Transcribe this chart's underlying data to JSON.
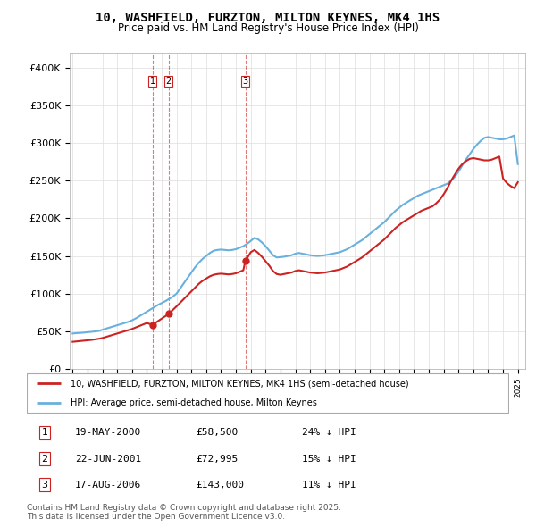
{
  "title": "10, WASHFIELD, FURZTON, MILTON KEYNES, MK4 1HS",
  "subtitle": "Price paid vs. HM Land Registry's House Price Index (HPI)",
  "ylabel_ticks": [
    0,
    50000,
    100000,
    150000,
    200000,
    250000,
    300000,
    350000,
    400000
  ],
  "ylabel_labels": [
    "£0",
    "£50K",
    "£100K",
    "£150K",
    "£200K",
    "£250K",
    "£300K",
    "£350K",
    "£400K"
  ],
  "ylim": [
    0,
    420000
  ],
  "xlim_start": 1994.8,
  "xlim_end": 2025.5,
  "hpi_color": "#6ab0de",
  "price_color": "#cc2222",
  "sale_dates": [
    2000.38,
    2001.47,
    2006.63
  ],
  "sale_prices": [
    58500,
    72995,
    143000
  ],
  "sale_labels": [
    "1",
    "2",
    "3"
  ],
  "legend_line1": "10, WASHFIELD, FURZTON, MILTON KEYNES, MK4 1HS (semi-detached house)",
  "legend_line2": "HPI: Average price, semi-detached house, Milton Keynes",
  "table_data": [
    [
      "1",
      "19-MAY-2000",
      "£58,500",
      "24% ↓ HPI"
    ],
    [
      "2",
      "22-JUN-2001",
      "£72,995",
      "15% ↓ HPI"
    ],
    [
      "3",
      "17-AUG-2006",
      "£143,000",
      "11% ↓ HPI"
    ]
  ],
  "footnote1": "Contains HM Land Registry data © Crown copyright and database right 2025.",
  "footnote2": "This data is licensed under the Open Government Licence v3.0.",
  "hpi_data_x": [
    1995.0,
    1995.25,
    1995.5,
    1995.75,
    1996.0,
    1996.25,
    1996.5,
    1996.75,
    1997.0,
    1997.25,
    1997.5,
    1997.75,
    1998.0,
    1998.25,
    1998.5,
    1998.75,
    1999.0,
    1999.25,
    1999.5,
    1999.75,
    2000.0,
    2000.25,
    2000.5,
    2000.75,
    2001.0,
    2001.25,
    2001.5,
    2001.75,
    2002.0,
    2002.25,
    2002.5,
    2002.75,
    2003.0,
    2003.25,
    2003.5,
    2003.75,
    2004.0,
    2004.25,
    2004.5,
    2004.75,
    2005.0,
    2005.25,
    2005.5,
    2005.75,
    2006.0,
    2006.25,
    2006.5,
    2006.75,
    2007.0,
    2007.25,
    2007.5,
    2007.75,
    2008.0,
    2008.25,
    2008.5,
    2008.75,
    2009.0,
    2009.25,
    2009.5,
    2009.75,
    2010.0,
    2010.25,
    2010.5,
    2010.75,
    2011.0,
    2011.25,
    2011.5,
    2011.75,
    2012.0,
    2012.25,
    2012.5,
    2012.75,
    2013.0,
    2013.25,
    2013.5,
    2013.75,
    2014.0,
    2014.25,
    2014.5,
    2014.75,
    2015.0,
    2015.25,
    2015.5,
    2015.75,
    2016.0,
    2016.25,
    2016.5,
    2016.75,
    2017.0,
    2017.25,
    2017.5,
    2017.75,
    2018.0,
    2018.25,
    2018.5,
    2018.75,
    2019.0,
    2019.25,
    2019.5,
    2019.75,
    2020.0,
    2020.25,
    2020.5,
    2020.75,
    2021.0,
    2021.25,
    2021.5,
    2021.75,
    2022.0,
    2022.25,
    2022.5,
    2022.75,
    2023.0,
    2023.25,
    2023.5,
    2023.75,
    2024.0,
    2024.25,
    2024.5,
    2024.75,
    2025.0
  ],
  "hpi_data_y": [
    47000,
    47500,
    47800,
    48200,
    48800,
    49200,
    49800,
    50500,
    52000,
    53500,
    55000,
    56500,
    58000,
    59500,
    61000,
    62500,
    64500,
    67000,
    70000,
    73000,
    76000,
    79000,
    82000,
    85000,
    87500,
    90000,
    93000,
    96000,
    100000,
    107000,
    114000,
    121000,
    128000,
    135000,
    141000,
    146000,
    150000,
    154000,
    157000,
    158000,
    158500,
    158000,
    157500,
    158000,
    159000,
    161000,
    163000,
    166000,
    170000,
    174000,
    172000,
    168000,
    163000,
    157000,
    151000,
    148000,
    148500,
    149000,
    150000,
    151000,
    153000,
    154000,
    153000,
    152000,
    151000,
    150500,
    150000,
    150500,
    151000,
    152000,
    153000,
    154000,
    155000,
    157000,
    159000,
    162000,
    165000,
    168000,
    171000,
    175000,
    179000,
    183000,
    187000,
    191000,
    195000,
    200000,
    205000,
    210000,
    214000,
    218000,
    221000,
    224000,
    227000,
    230000,
    232000,
    234000,
    236000,
    238000,
    240000,
    242000,
    244000,
    246000,
    250000,
    255000,
    262000,
    270000,
    278000,
    285000,
    292000,
    298000,
    303000,
    307000,
    308000,
    307000,
    306000,
    305000,
    305000,
    306000,
    308000,
    310000,
    272000
  ],
  "price_data_x": [
    1995.0,
    1995.25,
    1995.5,
    1995.75,
    1996.0,
    1996.25,
    1996.5,
    1996.75,
    1997.0,
    1997.25,
    1997.5,
    1997.75,
    1998.0,
    1998.25,
    1998.5,
    1998.75,
    1999.0,
    1999.25,
    1999.5,
    1999.75,
    2000.0,
    2000.38,
    2001.47,
    2002.0,
    2002.25,
    2002.5,
    2002.75,
    2003.0,
    2003.25,
    2003.5,
    2003.75,
    2004.0,
    2004.25,
    2004.5,
    2004.75,
    2005.0,
    2005.25,
    2005.5,
    2005.75,
    2006.0,
    2006.25,
    2006.5,
    2006.63,
    2007.0,
    2007.25,
    2007.5,
    2007.75,
    2008.0,
    2008.25,
    2008.5,
    2008.75,
    2009.0,
    2009.25,
    2009.5,
    2009.75,
    2010.0,
    2010.25,
    2010.5,
    2010.75,
    2011.0,
    2011.25,
    2011.5,
    2011.75,
    2012.0,
    2012.25,
    2012.5,
    2012.75,
    2013.0,
    2013.25,
    2013.5,
    2013.75,
    2014.0,
    2014.25,
    2014.5,
    2014.75,
    2015.0,
    2015.25,
    2015.5,
    2015.75,
    2016.0,
    2016.25,
    2016.5,
    2016.75,
    2017.0,
    2017.25,
    2017.5,
    2017.75,
    2018.0,
    2018.25,
    2018.5,
    2018.75,
    2019.0,
    2019.25,
    2019.5,
    2019.75,
    2020.0,
    2020.25,
    2020.5,
    2020.75,
    2021.0,
    2021.25,
    2021.5,
    2021.75,
    2022.0,
    2022.25,
    2022.5,
    2022.75,
    2023.0,
    2023.25,
    2023.5,
    2023.75,
    2024.0,
    2024.25,
    2024.5,
    2024.75,
    2025.0
  ],
  "price_data_y": [
    36000,
    36500,
    37000,
    37500,
    38000,
    38500,
    39200,
    40000,
    41000,
    42500,
    44000,
    45500,
    47000,
    48500,
    50000,
    51500,
    53000,
    55000,
    57000,
    59000,
    61000,
    58500,
    72995,
    83000,
    88000,
    93000,
    98000,
    103000,
    108000,
    113000,
    117000,
    120000,
    123000,
    125000,
    126000,
    126500,
    126000,
    125500,
    126000,
    127000,
    129000,
    131000,
    143000,
    155000,
    158000,
    154000,
    149000,
    143000,
    137000,
    130000,
    126000,
    125000,
    126000,
    127000,
    128000,
    130000,
    131000,
    130000,
    129000,
    128000,
    127500,
    127000,
    127500,
    128000,
    129000,
    130000,
    131000,
    132000,
    134000,
    136000,
    139000,
    142000,
    145000,
    148000,
    152000,
    156000,
    160000,
    164000,
    168000,
    172000,
    177000,
    182000,
    187000,
    191000,
    195000,
    198000,
    201000,
    204000,
    207000,
    210000,
    212000,
    214000,
    216000,
    220000,
    225000,
    232000,
    240000,
    250000,
    258000,
    266000,
    272000,
    276000,
    279000,
    280000,
    279000,
    278000,
    277000,
    277000,
    278000,
    280000,
    282000,
    253000,
    247000,
    243000,
    240000,
    248000
  ]
}
